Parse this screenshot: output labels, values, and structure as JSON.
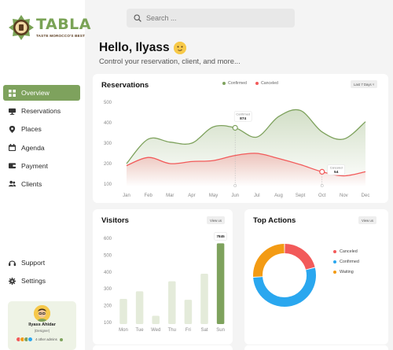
{
  "brand": {
    "name": "TABLA",
    "tagline": "TASTE MOROCCO'S BEST"
  },
  "search": {
    "placeholder": "Search ..."
  },
  "header": {
    "greeting": "Hello, Ilyass",
    "subtitle": "Control your reservation, client, and more..."
  },
  "sidebar": {
    "items": [
      {
        "label": "Overview",
        "icon": "grid-icon"
      },
      {
        "label": "Reservations",
        "icon": "monitor-icon"
      },
      {
        "label": "Places",
        "icon": "pin-icon"
      },
      {
        "label": "Agenda",
        "icon": "calendar-icon"
      },
      {
        "label": "Payment",
        "icon": "wallet-icon"
      },
      {
        "label": "Clients",
        "icon": "users-icon"
      }
    ],
    "bottom": [
      {
        "label": "Support",
        "icon": "headset-icon"
      },
      {
        "label": "Settings",
        "icon": "gear-icon"
      }
    ]
  },
  "profile": {
    "name": "Ilyass Ahidar",
    "role": "(Designer)",
    "admins": "4 other admins"
  },
  "reservations_card": {
    "title": "Reservations",
    "legend_confirmed": "Confirmed",
    "legend_canceled": "Canceled",
    "range": "Last 7 Days",
    "tooltip1_label": "Confirmed",
    "tooltip1_value": "874",
    "tooltip2_label": "Canceled",
    "tooltip2_value": "54"
  },
  "visitors_card": {
    "title": "Visitors",
    "view": "View us",
    "tooltip_value": "7845"
  },
  "top_actions_card": {
    "title": "Top Actions",
    "view": "View us",
    "legend": [
      {
        "label": "Canceled",
        "color": "#f25a5a"
      },
      {
        "label": "Confirmed",
        "color": "#2aa7ef"
      },
      {
        "label": "Waiting",
        "color": "#f39b14"
      }
    ]
  },
  "colors": {
    "accent": "#7ea25d",
    "confirmed": "#7ea25d",
    "canceled": "#f25a5a"
  },
  "chart_data": [
    {
      "type": "line",
      "title": "Reservations",
      "x": [
        "Jan",
        "Feb",
        "Mar",
        "Apr",
        "May",
        "Jun",
        "Jul",
        "Aug",
        "Sept",
        "Oct",
        "Nov",
        "Dec"
      ],
      "yticks": [
        "500",
        "400",
        "300",
        "200",
        "100"
      ],
      "ylim": [
        100,
        500
      ],
      "series": [
        {
          "name": "Confirmed",
          "color": "#7ea25d",
          "values": [
            200,
            320,
            305,
            300,
            380,
            375,
            330,
            430,
            460,
            355,
            320,
            405
          ]
        },
        {
          "name": "Canceled",
          "color": "#f25a5a",
          "values": [
            190,
            230,
            200,
            210,
            215,
            240,
            250,
            225,
            195,
            160,
            140,
            160
          ]
        }
      ],
      "grid": false
    },
    {
      "type": "bar",
      "title": "Visitors",
      "categories": [
        "Mon",
        "Tue",
        "Wed",
        "Thu",
        "Fri",
        "Sat",
        "Sun"
      ],
      "values": [
        240,
        285,
        140,
        345,
        235,
        390,
        570
      ],
      "yticks": [
        "600",
        "500",
        "400",
        "300",
        "200",
        "100"
      ],
      "ylim": [
        100,
        600
      ]
    },
    {
      "type": "pie",
      "title": "Top Actions",
      "labels": [
        "Canceled",
        "Confirmed",
        "Waiting"
      ],
      "values": [
        21,
        53,
        26
      ],
      "colors": [
        "#f25a5a",
        "#2aa7ef",
        "#f39b14"
      ]
    }
  ]
}
